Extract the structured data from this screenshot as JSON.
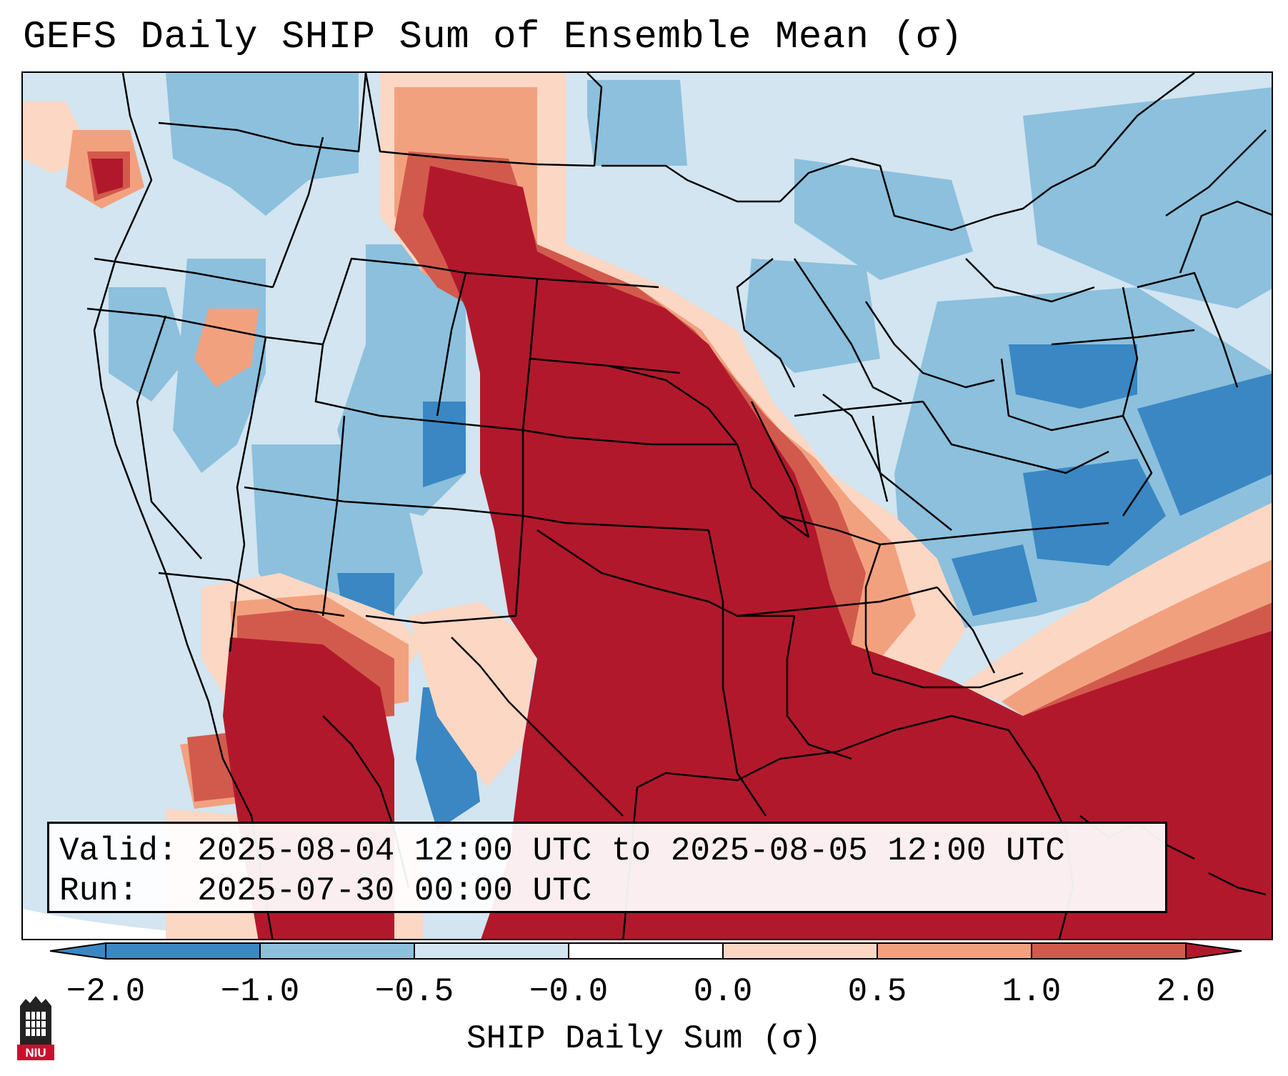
{
  "title": "GEFS Daily SHIP Sum of Ensemble Mean (σ)",
  "info": {
    "valid": "Valid: 2025-08-04 12:00 UTC to 2025-08-05 12:00 UTC",
    "run": "Run:   2025-07-30 00:00 UTC"
  },
  "colorbar": {
    "label": "SHIP Daily Sum (σ)",
    "ticks": [
      "−2.0",
      "−1.0",
      "−0.5",
      "−0.0",
      "0.0",
      "0.5",
      "1.0",
      "2.0"
    ],
    "colors": [
      "#3a87c3",
      "#8cc0dd",
      "#d2e5f0",
      "#ffffff",
      "#fbd7c4",
      "#f2a17f",
      "#d25a4d",
      "#b2182b"
    ],
    "extend": "both"
  },
  "logo": {
    "text": "NIU",
    "color": "#c8102e"
  }
}
